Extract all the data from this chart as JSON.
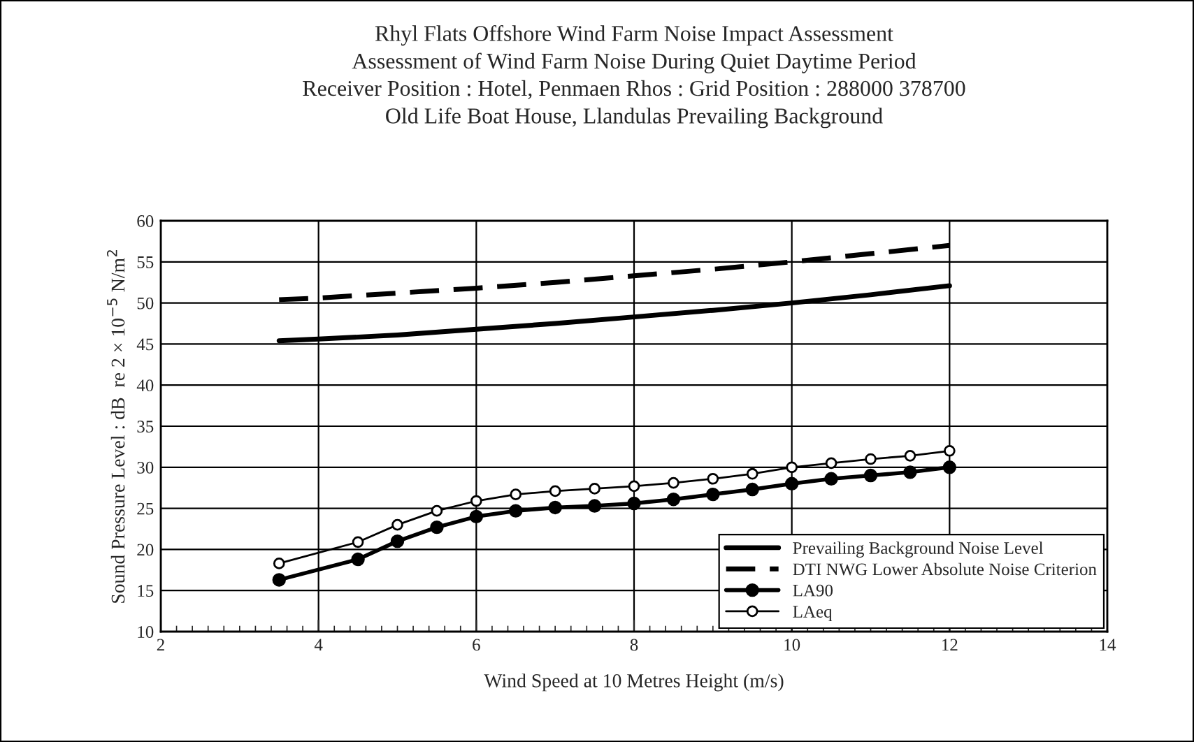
{
  "chart_data": {
    "type": "line",
    "title": "Rhyl Flats Offshore Wind Farm Noise Impact Assessment\nAssessment of Wind Farm Noise During Quiet Daytime Period\nReceiver Position : Hotel, Penmaen Rhos : Grid Position : 288000 378700\nOld Life Boat House, Llandulas Prevailing Background",
    "xlabel": "Wind Speed at 10 Metres Height (m/s)",
    "ylabel": "Sound Pressure Level : dB  re 2 × 10$^{−5}$ N/m$^{2}$",
    "xlim": [
      2,
      14
    ],
    "xticks": [
      2,
      4,
      6,
      8,
      10,
      12,
      14
    ],
    "ylim": [
      10,
      60
    ],
    "yticks": [
      10,
      15,
      20,
      25,
      30,
      35,
      40,
      45,
      50,
      55,
      60
    ],
    "grid": true,
    "legend": "bottom right",
    "series": [
      {
        "name": "Prevailing Background Noise Level",
        "color": "#000000",
        "line_style": "solid",
        "marker": "none",
        "x": [
          3.5,
          4,
          5,
          6,
          7,
          8,
          9,
          10,
          11,
          12
        ],
        "values": [
          45.4,
          45.6,
          46.1,
          46.8,
          47.5,
          48.3,
          49.1,
          50,
          51,
          52.1
        ]
      },
      {
        "name": "DTI NWG Lower Absolute Noise Criterion",
        "color": "#000000",
        "line_style": "dashed",
        "marker": "none",
        "x": [
          3.5,
          4,
          5,
          6,
          7,
          8,
          9,
          10,
          11,
          12
        ],
        "values": [
          50.4,
          50.6,
          51.2,
          51.8,
          52.5,
          53.3,
          54.1,
          55,
          56,
          57
        ]
      },
      {
        "name": "LA90",
        "color": "#000000",
        "line_style": "solid",
        "marker": "circle",
        "x": [
          3.5,
          4.5,
          5,
          5.5,
          6,
          6.5,
          7,
          7.5,
          8,
          8.5,
          9,
          9.5,
          10,
          10.5,
          11,
          11.5,
          12
        ],
        "values": [
          16.3,
          18.8,
          21,
          22.7,
          24,
          24.7,
          25.1,
          25.3,
          25.6,
          26.1,
          26.7,
          27.3,
          28,
          28.6,
          29,
          29.4,
          30
        ]
      },
      {
        "name": "LAeq",
        "color": "#000000",
        "line_style": "solid",
        "marker": "circle",
        "x": [
          3.5,
          4.5,
          5,
          5.5,
          6,
          6.5,
          7,
          7.5,
          8,
          8.5,
          9,
          9.5,
          10,
          10.5,
          11,
          11.5,
          12
        ],
        "values": [
          18.3,
          20.9,
          23,
          24.7,
          25.9,
          26.7,
          27.1,
          27.4,
          27.7,
          28.1,
          28.6,
          29.2,
          30,
          30.5,
          31,
          31.4,
          32
        ]
      }
    ]
  }
}
